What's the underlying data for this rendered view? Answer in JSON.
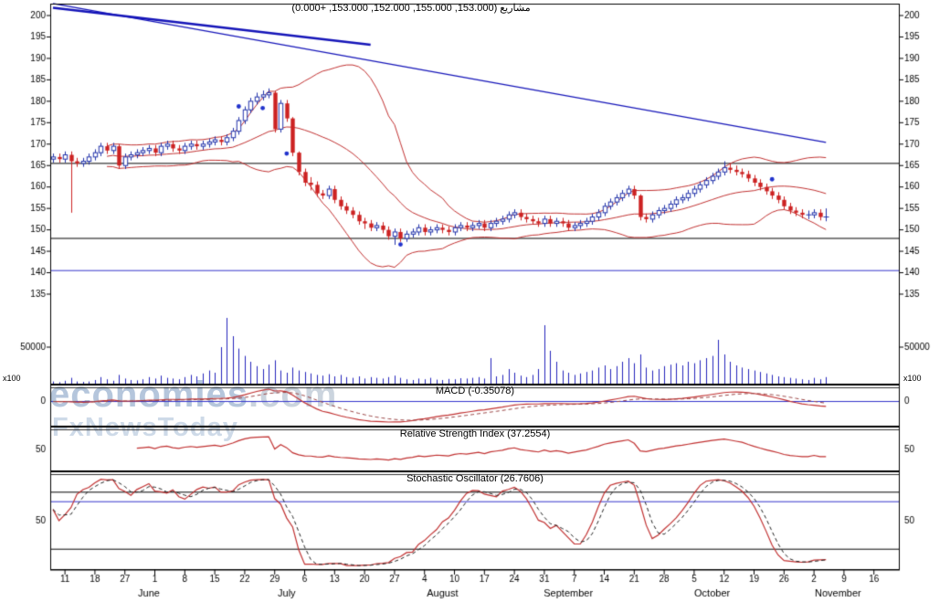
{
  "header": {
    "annotation": "مشاريع (153.000, 155.000, 152.000, 153.000, +0.000)"
  },
  "watermark": {
    "brand": "economies",
    "tld": ".com",
    "tagline": "FxNewsToday"
  },
  "panel_labels": {
    "macd": "MACD (-0.35078)",
    "rsi": "Relative Strength Index (37.2554)",
    "stochastic": "Stochastic Oscillator (26.7606)"
  },
  "axis": {
    "price_ticks": [
      200,
      195,
      190,
      185,
      180,
      175,
      170,
      165,
      160,
      155,
      150,
      145,
      140,
      135
    ],
    "volume_tick": "50000",
    "volume_unit": "x100",
    "macd_zero_label": "0",
    "rsi_mid_label": "50",
    "stoch_mid_label": "50",
    "date_ticks": [
      "11",
      "18",
      "27",
      "1",
      "8",
      "15",
      "22",
      "29",
      "6",
      "13",
      "20",
      "27",
      "4",
      "10",
      "17",
      "24",
      "31",
      "7",
      "14",
      "21",
      "28",
      "5",
      "12",
      "19",
      "26",
      "2",
      "9",
      "16"
    ],
    "months": [
      {
        "label": "June",
        "day": 16
      },
      {
        "label": "July",
        "day": 39
      },
      {
        "label": "August",
        "day": 65
      },
      {
        "label": "September",
        "day": 86
      },
      {
        "label": "October",
        "day": 110
      },
      {
        "label": "November",
        "day": 131
      }
    ]
  },
  "chart_data": {
    "type": "candlestick",
    "title": "مشاريع",
    "last_quote": {
      "open": 153.0,
      "high": 155.0,
      "low": 152.0,
      "close": 153.0,
      "change": "+0.000"
    },
    "price_panel": {
      "ylim": [
        135,
        203
      ],
      "up_color": "#2233aa",
      "down_color": "#cc2222",
      "candles": [
        [
          166.5,
          167.8,
          165.7,
          167.0
        ],
        [
          167.0,
          167.8,
          165.7,
          166.5
        ],
        [
          166.5,
          168.3,
          165.7,
          167.5
        ],
        [
          167.5,
          168.3,
          154.0,
          166.0
        ],
        [
          166.0,
          166.8,
          164.7,
          165.5
        ],
        [
          165.5,
          166.8,
          164.7,
          166.0
        ],
        [
          166.0,
          167.8,
          165.2,
          167.0
        ],
        [
          167.0,
          168.8,
          166.2,
          168.0
        ],
        [
          168.0,
          170.3,
          167.2,
          169.5
        ],
        [
          169.5,
          170.3,
          167.7,
          168.5
        ],
        [
          168.5,
          170.3,
          167.7,
          169.5
        ],
        [
          169.5,
          170.0,
          164.2,
          165.0
        ],
        [
          165.0,
          167.8,
          164.2,
          167.0
        ],
        [
          167.0,
          168.3,
          166.2,
          167.5
        ],
        [
          167.5,
          168.8,
          166.7,
          168.0
        ],
        [
          168.0,
          169.3,
          167.2,
          168.5
        ],
        [
          168.5,
          169.8,
          167.7,
          169.0
        ],
        [
          169.0,
          169.8,
          167.2,
          168.0
        ],
        [
          168.0,
          170.3,
          167.2,
          169.5
        ],
        [
          169.5,
          170.8,
          168.7,
          170.0
        ],
        [
          170.0,
          170.8,
          168.2,
          169.0
        ],
        [
          169.0,
          169.8,
          167.7,
          168.5
        ],
        [
          168.5,
          170.3,
          167.7,
          169.5
        ],
        [
          169.5,
          170.8,
          168.7,
          170.0
        ],
        [
          170.0,
          170.8,
          168.7,
          169.5
        ],
        [
          169.5,
          170.8,
          168.7,
          170.0
        ],
        [
          170.0,
          171.3,
          169.2,
          170.5
        ],
        [
          170.5,
          171.8,
          169.7,
          171.0
        ],
        [
          171.0,
          171.8,
          169.7,
          170.5
        ],
        [
          170.5,
          172.3,
          169.7,
          171.5
        ],
        [
          171.5,
          173.8,
          170.7,
          173.0
        ],
        [
          173.0,
          176.3,
          172.2,
          175.5
        ],
        [
          175.5,
          178.8,
          174.7,
          178.0
        ],
        [
          178.0,
          180.8,
          177.2,
          180.0
        ],
        [
          180.0,
          182.0,
          179.2,
          181.0
        ],
        [
          181.0,
          182.5,
          180.2,
          181.5
        ],
        [
          181.5,
          183.0,
          180.7,
          182.0
        ],
        [
          182.0,
          182.3,
          172.7,
          173.5
        ],
        [
          173.5,
          180.3,
          172.7,
          179.5
        ],
        [
          179.5,
          180.3,
          175.2,
          176.0
        ],
        [
          176.0,
          176.3,
          167.2,
          168.0
        ],
        [
          168.0,
          168.3,
          162.7,
          163.5
        ],
        [
          163.5,
          164.3,
          160.2,
          161.0
        ],
        [
          161.0,
          162.3,
          159.2,
          160.5
        ],
        [
          160.5,
          161.3,
          157.7,
          158.5
        ],
        [
          158.5,
          159.3,
          157.2,
          158.0
        ],
        [
          158.0,
          160.3,
          157.2,
          159.5
        ],
        [
          159.5,
          160.3,
          156.2,
          157.0
        ],
        [
          157.0,
          157.8,
          154.7,
          155.5
        ],
        [
          155.5,
          156.3,
          153.7,
          154.5
        ],
        [
          154.5,
          155.3,
          152.7,
          153.5
        ],
        [
          153.5,
          154.3,
          151.2,
          152.0
        ],
        [
          152.0,
          152.8,
          150.2,
          151.5
        ],
        [
          151.5,
          152.3,
          149.7,
          150.5
        ],
        [
          150.5,
          151.8,
          149.7,
          151.0
        ],
        [
          151.0,
          151.8,
          149.2,
          150.0
        ],
        [
          150.0,
          150.8,
          147.7,
          148.5
        ],
        [
          148.5,
          150.3,
          146.5,
          149.5
        ],
        [
          149.5,
          150.3,
          147.2,
          148.0
        ],
        [
          148.0,
          149.8,
          147.2,
          149.0
        ],
        [
          149.0,
          150.3,
          148.2,
          149.5
        ],
        [
          149.5,
          151.3,
          148.7,
          150.5
        ],
        [
          150.5,
          151.3,
          148.7,
          149.5
        ],
        [
          149.5,
          150.8,
          148.7,
          150.0
        ],
        [
          150.0,
          151.3,
          149.2,
          150.5
        ],
        [
          150.5,
          151.3,
          149.2,
          150.0
        ],
        [
          150.0,
          150.8,
          148.7,
          149.5
        ],
        [
          149.5,
          151.3,
          148.7,
          150.5
        ],
        [
          150.5,
          151.8,
          149.7,
          151.0
        ],
        [
          151.0,
          151.8,
          149.7,
          150.5
        ],
        [
          150.5,
          151.8,
          149.7,
          151.0
        ],
        [
          151.0,
          152.3,
          150.2,
          151.5
        ],
        [
          151.5,
          152.3,
          149.7,
          150.5
        ],
        [
          150.5,
          152.3,
          149.7,
          151.5
        ],
        [
          151.5,
          152.8,
          150.7,
          152.0
        ],
        [
          152.0,
          153.3,
          151.2,
          152.5
        ],
        [
          152.5,
          154.3,
          151.7,
          153.5
        ],
        [
          153.5,
          154.8,
          152.7,
          154.0
        ],
        [
          154.0,
          154.8,
          152.2,
          153.0
        ],
        [
          153.0,
          153.8,
          151.7,
          152.5
        ],
        [
          152.5,
          153.3,
          151.2,
          152.0
        ],
        [
          152.0,
          152.8,
          150.7,
          151.5
        ],
        [
          151.5,
          153.3,
          150.7,
          152.5
        ],
        [
          152.5,
          153.3,
          150.7,
          151.5
        ],
        [
          151.5,
          152.8,
          150.7,
          152.0
        ],
        [
          152.0,
          152.8,
          150.7,
          151.5
        ],
        [
          151.5,
          152.3,
          149.7,
          150.5
        ],
        [
          150.5,
          151.8,
          149.7,
          151.0
        ],
        [
          151.0,
          152.3,
          150.2,
          151.5
        ],
        [
          151.5,
          152.8,
          150.7,
          152.0
        ],
        [
          152.0,
          153.8,
          151.2,
          153.0
        ],
        [
          153.0,
          154.8,
          152.2,
          154.0
        ],
        [
          154.0,
          156.3,
          153.2,
          155.5
        ],
        [
          155.5,
          157.3,
          154.7,
          156.5
        ],
        [
          156.5,
          158.3,
          155.7,
          157.5
        ],
        [
          157.5,
          159.3,
          156.7,
          158.5
        ],
        [
          158.5,
          160.3,
          157.7,
          159.5
        ],
        [
          159.5,
          160.3,
          157.2,
          158.0
        ],
        [
          158.0,
          158.3,
          152.2,
          153.0
        ],
        [
          153.0,
          153.8,
          151.7,
          152.5
        ],
        [
          152.5,
          154.3,
          151.7,
          153.5
        ],
        [
          153.5,
          155.3,
          152.7,
          154.5
        ],
        [
          154.5,
          155.8,
          153.7,
          155.0
        ],
        [
          155.0,
          156.8,
          154.2,
          156.0
        ],
        [
          156.0,
          157.8,
          155.2,
          157.0
        ],
        [
          157.0,
          158.3,
          156.2,
          157.5
        ],
        [
          157.5,
          159.3,
          156.7,
          158.5
        ],
        [
          158.5,
          160.3,
          157.7,
          159.5
        ],
        [
          159.5,
          161.3,
          158.7,
          160.5
        ],
        [
          160.5,
          162.3,
          159.7,
          161.5
        ],
        [
          161.5,
          163.3,
          160.7,
          162.5
        ],
        [
          162.5,
          164.3,
          161.7,
          163.5
        ],
        [
          163.5,
          166.0,
          162.7,
          164.5
        ],
        [
          164.5,
          165.5,
          163.2,
          164.0
        ],
        [
          164.0,
          165.0,
          162.7,
          163.5
        ],
        [
          163.5,
          164.3,
          162.2,
          163.0
        ],
        [
          163.0,
          163.8,
          161.2,
          162.0
        ],
        [
          162.0,
          162.8,
          160.2,
          161.0
        ],
        [
          161.0,
          161.8,
          159.2,
          160.0
        ],
        [
          160.0,
          160.8,
          158.2,
          159.0
        ],
        [
          159.0,
          159.8,
          157.2,
          158.0
        ],
        [
          158.0,
          158.8,
          156.2,
          157.0
        ],
        [
          157.0,
          157.8,
          154.7,
          155.5
        ],
        [
          155.5,
          156.3,
          153.7,
          154.5
        ],
        [
          154.5,
          155.3,
          153.2,
          154.0
        ],
        [
          154.0,
          154.8,
          152.7,
          153.5
        ],
        [
          153.5,
          154.5,
          152.5,
          153.5
        ],
        [
          153.5,
          154.8,
          152.7,
          154.0
        ],
        [
          154.0,
          154.8,
          152.2,
          153.0
        ],
        [
          153.0,
          155.0,
          152.0,
          153.0
        ]
      ],
      "bollinger": {
        "period": 20,
        "stddev": 2,
        "color": "#c03030"
      },
      "trendlines": [
        {
          "from_day": 0,
          "from_price": 201.8,
          "to_day": 53,
          "to_price": 193.2,
          "width": 2.5,
          "color": "#1414b8"
        },
        {
          "from_day": 0,
          "from_price": 202.8,
          "to_day": 129,
          "to_price": 170.4,
          "width": 1.2,
          "color": "#1414b8"
        }
      ],
      "hlines": [
        {
          "price": 165.5,
          "color": "#000000"
        },
        {
          "price": 148.0,
          "color": "#000000"
        },
        {
          "price": 140.5,
          "color": "#3333cc"
        }
      ],
      "signal_dots": [
        {
          "day": 31,
          "price": 178.8
        },
        {
          "day": 35,
          "price": 178.4
        },
        {
          "day": 39,
          "price": 167.8
        },
        {
          "day": 58,
          "price": 146.6
        },
        {
          "day": 120,
          "price": 161.8
        }
      ],
      "dot_color": "#2233cc"
    },
    "volume_panel": {
      "ref_value": 50000,
      "color": "#2222bb",
      "values": [
        3000,
        2000,
        4000,
        8000,
        3000,
        2500,
        3000,
        5000,
        9000,
        6000,
        4000,
        12000,
        7000,
        5000,
        4500,
        6000,
        9000,
        7000,
        11000,
        8000,
        7000,
        6000,
        9000,
        12000,
        10000,
        14000,
        18000,
        15000,
        50000,
        90000,
        65000,
        48000,
        38000,
        30000,
        24000,
        20000,
        26000,
        32000,
        18000,
        15000,
        22000,
        18000,
        16000,
        14000,
        12000,
        11000,
        13000,
        10000,
        12000,
        9000,
        8000,
        10000,
        7000,
        9000,
        8000,
        7000,
        9000,
        11000,
        8000,
        6000,
        5000,
        7000,
        6000,
        8000,
        5500,
        5000,
        6500,
        6000,
        7500,
        7000,
        8000,
        9000,
        7000,
        35000,
        10000,
        12000,
        20000,
        15000,
        11000,
        9000,
        12000,
        20000,
        80000,
        45000,
        30000,
        18000,
        15000,
        12000,
        14000,
        16000,
        18000,
        22000,
        25000,
        20000,
        24000,
        30000,
        35000,
        28000,
        40000,
        22000,
        18000,
        20000,
        24000,
        26000,
        28000,
        25000,
        30000,
        28000,
        32000,
        35000,
        38000,
        60000,
        40000,
        30000,
        25000,
        22000,
        20000,
        18000,
        16000,
        14000,
        12000,
        10000,
        9000,
        8000,
        7000,
        6000,
        5000,
        8000,
        6000,
        9000
      ]
    },
    "macd_panel": {
      "fast": 12,
      "slow": 26,
      "signal": 9,
      "value": -0.35078,
      "line_color": "#c03030",
      "signal_color": "#994444",
      "zero_color": "#3333cc"
    },
    "rsi_panel": {
      "period": 14,
      "value": 37.2554,
      "line_color": "#c03030"
    },
    "stoch_panel": {
      "period": 14,
      "smooth_k": 3,
      "smooth_d": 3,
      "value": 26.7606,
      "k_color": "#c03030",
      "d_color": "#222222",
      "levels": {
        "upper": 80,
        "lower": 20,
        "mid_line": 70
      },
      "level_color": "#000000",
      "mid_line_color": "#3333cc"
    }
  }
}
